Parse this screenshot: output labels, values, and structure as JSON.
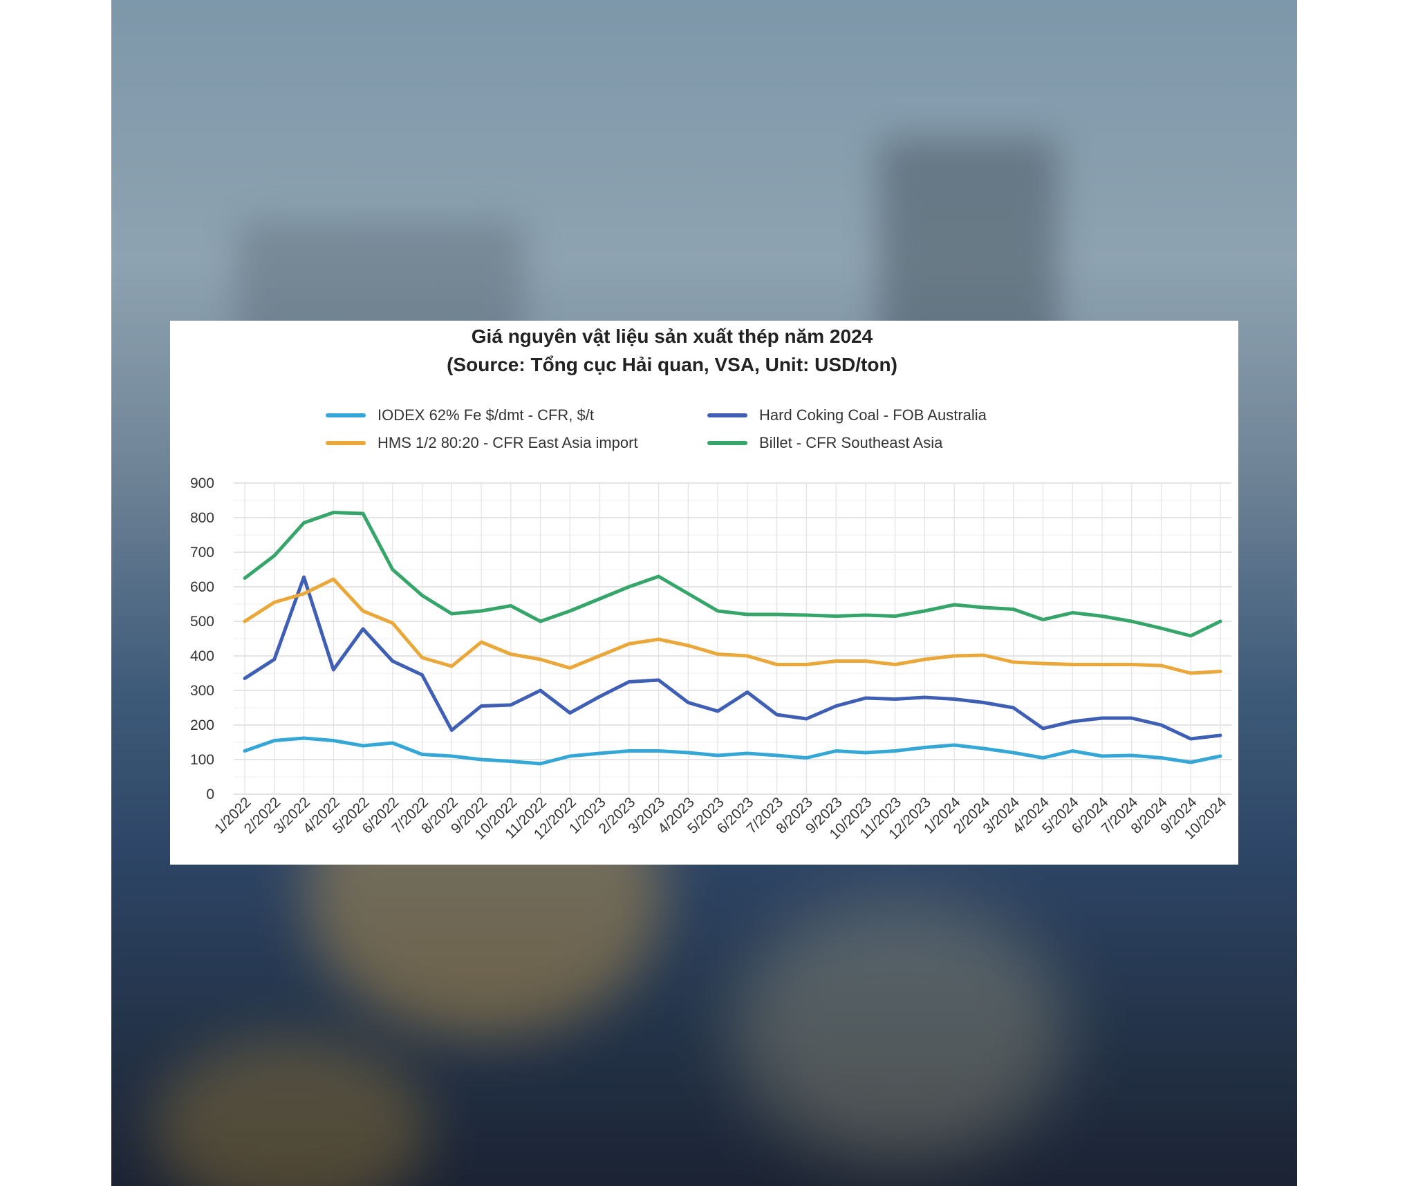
{
  "chart_data": {
    "type": "line",
    "title": "Giá nguyên vật liệu sản xuất thép năm 2024",
    "subtitle": "(Source: Tổng cục Hải quan, VSA, Unit: USD/ton)",
    "categories": [
      "1/2022",
      "2/2022",
      "3/2022",
      "4/2022",
      "5/2022",
      "6/2022",
      "7/2022",
      "8/2022",
      "9/2022",
      "10/2022",
      "11/2022",
      "12/2022",
      "1/2023",
      "2/2023",
      "3/2023",
      "4/2023",
      "5/2023",
      "6/2023",
      "7/2023",
      "8/2023",
      "9/2023",
      "10/2023",
      "11/2023",
      "12/2023",
      "1/2024",
      "2/2024",
      "3/2024",
      "4/2024",
      "5/2024",
      "6/2024",
      "7/2024",
      "8/2024",
      "9/2024",
      "10/2024"
    ],
    "ylim": [
      0,
      900
    ],
    "yticks": [
      "0",
      "100",
      "200",
      "300",
      "400",
      "500",
      "600",
      "700",
      "800",
      "900"
    ],
    "grid": true,
    "legend_position": "top",
    "series": [
      {
        "name": "IODEX 62% Fe $/dmt - CFR, $/t",
        "color": "#35a7d6",
        "values": [
          125,
          155,
          162,
          155,
          140,
          148,
          115,
          110,
          100,
          95,
          88,
          110,
          118,
          125,
          125,
          120,
          112,
          118,
          112,
          105,
          125,
          120,
          125,
          135,
          142,
          132,
          120,
          105,
          125,
          110,
          112,
          105,
          92,
          110
        ]
      },
      {
        "name": "Hard Coking Coal - FOB Australia",
        "color": "#3f5fb5",
        "values": [
          335,
          390,
          628,
          360,
          478,
          385,
          345,
          185,
          255,
          258,
          300,
          235,
          282,
          325,
          330,
          265,
          240,
          295,
          230,
          218,
          255,
          278,
          275,
          280,
          275,
          265,
          250,
          190,
          210,
          220,
          220,
          200,
          160,
          170
        ]
      },
      {
        "name": "HMS 1/2 80:20 - CFR East Asia import",
        "color": "#eaa83a",
        "values": [
          500,
          555,
          580,
          622,
          530,
          495,
          395,
          370,
          440,
          405,
          390,
          365,
          400,
          435,
          448,
          430,
          405,
          400,
          375,
          375,
          385,
          385,
          375,
          390,
          400,
          402,
          382,
          378,
          375,
          375,
          375,
          372,
          350,
          355
        ]
      },
      {
        "name": "Billet - CFR Southeast Asia",
        "color": "#35a56a",
        "values": [
          625,
          690,
          785,
          815,
          812,
          650,
          575,
          522,
          530,
          545,
          500,
          530,
          565,
          600,
          630,
          580,
          530,
          520,
          520,
          518,
          515,
          518,
          515,
          530,
          548,
          540,
          535,
          505,
          525,
          515,
          500,
          480,
          458,
          500
        ]
      }
    ]
  }
}
